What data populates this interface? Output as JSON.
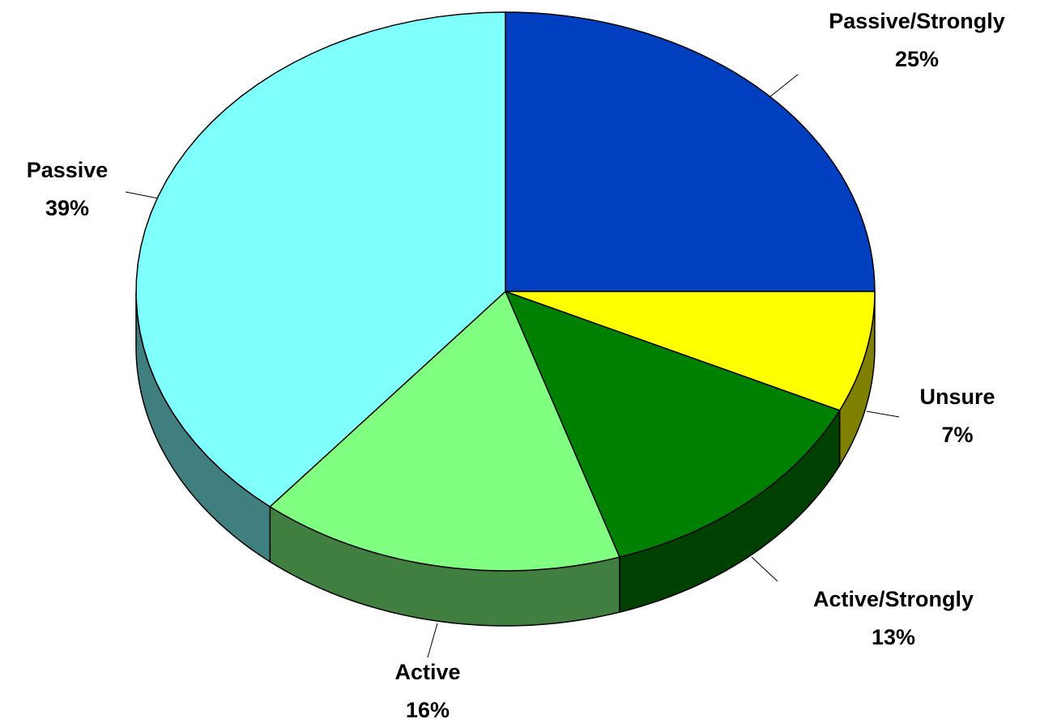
{
  "chart_data": {
    "type": "pie",
    "categories": [
      "Passive/Strongly",
      "Unsure",
      "Active/Strongly",
      "Active",
      "Passive"
    ],
    "values": [
      25,
      7,
      13,
      16,
      39
    ],
    "value_labels": [
      "25%",
      "7%",
      "13%",
      "16%",
      "39%"
    ],
    "colors": [
      "#0040c0",
      "#ffff00",
      "#008000",
      "#80ff80",
      "#80ffff"
    ]
  }
}
